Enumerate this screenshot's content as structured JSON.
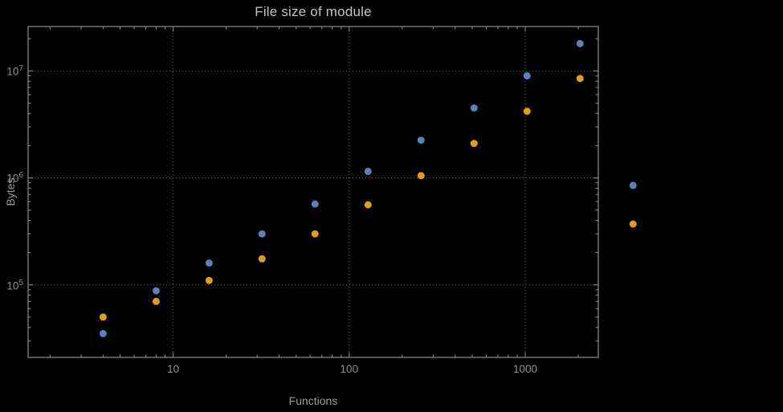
{
  "title": "File size of module",
  "colors": {
    "background": "#000000",
    "frame": "#8f8f8f",
    "grid": "#6a6a6a",
    "title_text": "#c3c3c3",
    "axis_text": "#9a9a9a",
    "tick_text": "#919191",
    "series_blue": "#5e81b5",
    "series_orange": "#e19c24"
  },
  "chart_data": {
    "type": "scatter",
    "title": "File size of module",
    "xlabel": "Functions",
    "ylabel": "Bytes",
    "x_scale": "log",
    "y_scale": "log",
    "xlim": [
      1.5,
      2600
    ],
    "ylim": [
      21000,
      26000000
    ],
    "grid": true,
    "legend_position": "none",
    "x_ticks": [
      {
        "value": 10,
        "label": "10"
      },
      {
        "value": 100,
        "label": "100"
      },
      {
        "value": 1000,
        "label": "1000"
      }
    ],
    "y_ticks": [
      {
        "value": 100000,
        "base": "10",
        "exp": "5"
      },
      {
        "value": 1000000,
        "base": "10",
        "exp": "6"
      },
      {
        "value": 10000000,
        "base": "10",
        "exp": "7"
      }
    ],
    "series": [
      {
        "name": "blue-series",
        "color": "#5e81b5",
        "points": [
          [
            4,
            35000
          ],
          [
            8,
            88000
          ],
          [
            16,
            160000
          ],
          [
            32,
            300000
          ],
          [
            64,
            570000
          ],
          [
            128,
            1150000
          ],
          [
            256,
            2250000
          ],
          [
            512,
            4500000
          ],
          [
            1024,
            9000000
          ],
          [
            2048,
            18000000
          ],
          [
            4096,
            850000
          ]
        ]
      },
      {
        "name": "orange-series",
        "color": "#e19c24",
        "points": [
          [
            4,
            50000
          ],
          [
            8,
            70000
          ],
          [
            16,
            110000
          ],
          [
            32,
            175000
          ],
          [
            64,
            300000
          ],
          [
            128,
            560000
          ],
          [
            256,
            1050000
          ],
          [
            512,
            2100000
          ],
          [
            1024,
            4200000
          ],
          [
            2048,
            8500000
          ],
          [
            4096,
            370000
          ]
        ]
      }
    ]
  }
}
